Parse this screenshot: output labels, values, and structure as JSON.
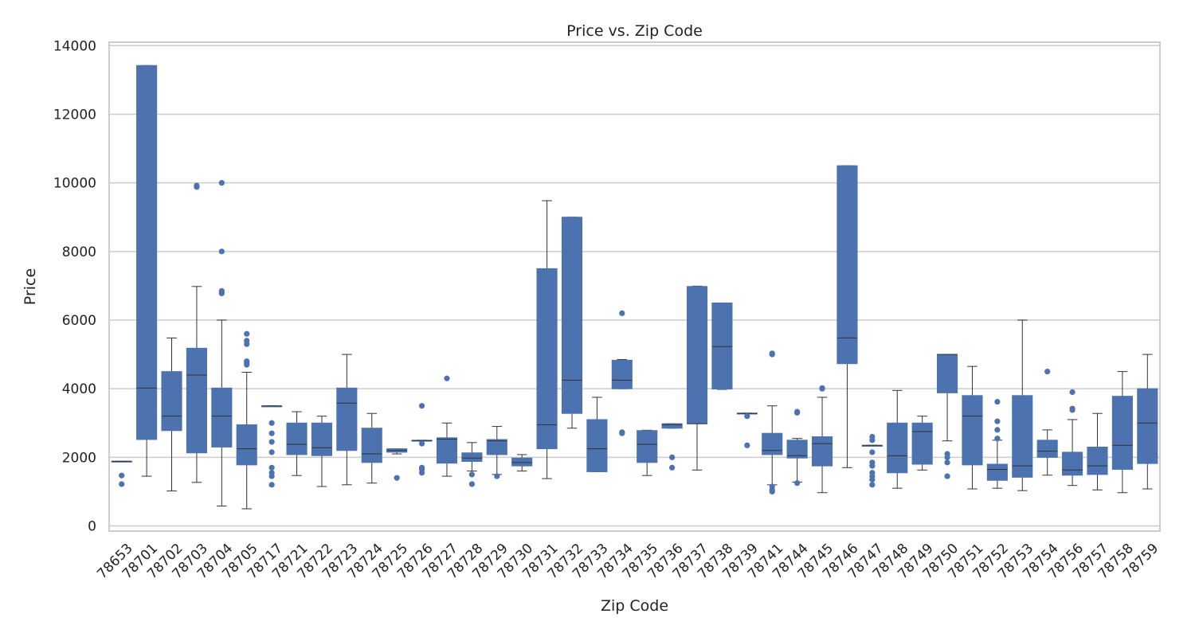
{
  "chart_data": {
    "type": "box",
    "title": "Price vs. Zip Code",
    "xlabel": "Zip Code",
    "ylabel": "Price",
    "ylim": [
      -150,
      14100
    ],
    "yticks": [
      0,
      2000,
      4000,
      6000,
      8000,
      10000,
      12000,
      14000
    ],
    "grid": "horizontal",
    "box_color": "#4c72b0",
    "line_color": "#333333",
    "grid_color": "#cccccc",
    "frame_color": "#cccccc",
    "categories": [
      "78653",
      "78701",
      "78702",
      "78703",
      "78704",
      "78705",
      "78717",
      "78721",
      "78722",
      "78723",
      "78724",
      "78725",
      "78726",
      "78727",
      "78728",
      "78729",
      "78730",
      "78731",
      "78732",
      "78733",
      "78734",
      "78735",
      "78736",
      "78737",
      "78738",
      "78739",
      "78741",
      "78744",
      "78745",
      "78746",
      "78747",
      "78748",
      "78749",
      "78750",
      "78751",
      "78752",
      "78753",
      "78754",
      "78756",
      "78757",
      "78758",
      "78759"
    ],
    "boxes": [
      {
        "low": 1880,
        "q1": 1880,
        "median": 1880,
        "q3": 1890,
        "high": 1890,
        "outliers": [
          1470,
          1220
        ]
      },
      {
        "low": 1450,
        "q1": 2520,
        "median": 4020,
        "q3": 13420,
        "high": 13420,
        "outliers": []
      },
      {
        "low": 1020,
        "q1": 2780,
        "median": 3200,
        "q3": 4500,
        "high": 5480,
        "outliers": []
      },
      {
        "low": 1270,
        "q1": 2130,
        "median": 4400,
        "q3": 5180,
        "high": 6980,
        "outliers": [
          9880,
          9920
        ]
      },
      {
        "low": 580,
        "q1": 2300,
        "median": 3200,
        "q3": 4020,
        "high": 6000,
        "outliers": [
          10000,
          8000,
          6850,
          6800,
          6780
        ]
      },
      {
        "low": 500,
        "q1": 1780,
        "median": 2250,
        "q3": 2950,
        "high": 4480,
        "outliers": [
          5600,
          5400,
          5300,
          4800,
          4750,
          4700
        ]
      },
      {
        "low": 3500,
        "q1": 3500,
        "median": 3500,
        "q3": 3500,
        "high": 3500,
        "outliers": [
          3000,
          2700,
          2450,
          2150,
          1700,
          1550,
          1450,
          1200
        ]
      },
      {
        "low": 1470,
        "q1": 2080,
        "median": 2380,
        "q3": 3000,
        "high": 3330,
        "outliers": []
      },
      {
        "low": 1150,
        "q1": 2050,
        "median": 2280,
        "q3": 3000,
        "high": 3200,
        "outliers": []
      },
      {
        "low": 1200,
        "q1": 2200,
        "median": 3580,
        "q3": 4020,
        "high": 5000,
        "outliers": []
      },
      {
        "low": 1250,
        "q1": 1850,
        "median": 2100,
        "q3": 2850,
        "high": 3280,
        "outliers": []
      },
      {
        "low": 2100,
        "q1": 2150,
        "median": 2200,
        "q3": 2250,
        "high": 2250,
        "outliers": [
          1400
        ]
      },
      {
        "low": 2480,
        "q1": 2480,
        "median": 2480,
        "q3": 2500,
        "high": 2500,
        "outliers": [
          3500,
          2400,
          1700,
          1650,
          1550
        ]
      },
      {
        "low": 1450,
        "q1": 1830,
        "median": 2530,
        "q3": 2570,
        "high": 3000,
        "outliers": [
          4300
        ]
      },
      {
        "low": 1600,
        "q1": 1880,
        "median": 1980,
        "q3": 2130,
        "high": 2430,
        "outliers": [
          1500,
          1220
        ]
      },
      {
        "low": 1500,
        "q1": 2080,
        "median": 2480,
        "q3": 2520,
        "high": 2900,
        "outliers": [
          1450
        ]
      },
      {
        "low": 1600,
        "q1": 1750,
        "median": 1850,
        "q3": 1980,
        "high": 2080,
        "outliers": []
      },
      {
        "low": 1380,
        "q1": 2250,
        "median": 2950,
        "q3": 7500,
        "high": 9480,
        "outliers": []
      },
      {
        "low": 2850,
        "q1": 3280,
        "median": 4250,
        "q3": 9000,
        "high": 9000,
        "outliers": []
      },
      {
        "low": 1580,
        "q1": 1580,
        "median": 2250,
        "q3": 3100,
        "high": 3750,
        "outliers": []
      },
      {
        "low": 4000,
        "q1": 4000,
        "median": 4250,
        "q3": 4830,
        "high": 4850,
        "outliers": [
          6200,
          2730,
          2700
        ]
      },
      {
        "low": 1470,
        "q1": 1850,
        "median": 2380,
        "q3": 2780,
        "high": 2790,
        "outliers": []
      },
      {
        "low": 2850,
        "q1": 2850,
        "median": 2950,
        "q3": 2980,
        "high": 2980,
        "outliers": [
          2000,
          1700
        ]
      },
      {
        "low": 1630,
        "q1": 2980,
        "median": 2980,
        "q3": 6980,
        "high": 6990,
        "outliers": []
      },
      {
        "low": 3980,
        "q1": 3990,
        "median": 5230,
        "q3": 6500,
        "high": 6500,
        "outliers": []
      },
      {
        "low": 3280,
        "q1": 3280,
        "median": 3280,
        "q3": 3290,
        "high": 3290,
        "outliers": [
          3200,
          2350
        ]
      },
      {
        "low": 1200,
        "q1": 2080,
        "median": 2200,
        "q3": 2700,
        "high": 3500,
        "outliers": [
          5030,
          5000,
          1150,
          1050,
          1000
        ]
      },
      {
        "low": 1280,
        "q1": 1980,
        "median": 2050,
        "q3": 2500,
        "high": 2550,
        "outliers": [
          3330,
          3300,
          1250
        ]
      },
      {
        "low": 970,
        "q1": 1750,
        "median": 2400,
        "q3": 2600,
        "high": 3750,
        "outliers": [
          4020,
          4000
        ]
      },
      {
        "low": 1700,
        "q1": 4730,
        "median": 5480,
        "q3": 10500,
        "high": 10500,
        "outliers": []
      },
      {
        "low": 2350,
        "q1": 2350,
        "median": 2350,
        "q3": 2350,
        "high": 2350,
        "outliers": [
          2600,
          2500,
          2150,
          1850,
          1750,
          1550,
          1450,
          1350,
          1200
        ]
      },
      {
        "low": 1100,
        "q1": 1550,
        "median": 2050,
        "q3": 3000,
        "high": 3950,
        "outliers": []
      },
      {
        "low": 1630,
        "q1": 1800,
        "median": 2750,
        "q3": 3000,
        "high": 3200,
        "outliers": []
      },
      {
        "low": 2480,
        "q1": 3880,
        "median": 5000,
        "q3": 5000,
        "high": 5000,
        "outliers": [
          2100,
          2000,
          1850,
          1450
        ]
      },
      {
        "low": 1080,
        "q1": 1780,
        "median": 3200,
        "q3": 3800,
        "high": 4650,
        "outliers": []
      },
      {
        "low": 1100,
        "q1": 1330,
        "median": 1650,
        "q3": 1800,
        "high": 2500,
        "outliers": [
          3620,
          3050,
          2800,
          2550
        ]
      },
      {
        "low": 1030,
        "q1": 1420,
        "median": 1750,
        "q3": 3800,
        "high": 6000,
        "outliers": []
      },
      {
        "low": 1480,
        "q1": 2000,
        "median": 2180,
        "q3": 2500,
        "high": 2800,
        "outliers": [
          4500
        ]
      },
      {
        "low": 1180,
        "q1": 1480,
        "median": 1630,
        "q3": 2150,
        "high": 3100,
        "outliers": [
          3900,
          3420,
          3380
        ]
      },
      {
        "low": 1050,
        "q1": 1500,
        "median": 1750,
        "q3": 2300,
        "high": 3280,
        "outliers": []
      },
      {
        "low": 970,
        "q1": 1650,
        "median": 2350,
        "q3": 3780,
        "high": 4500,
        "outliers": []
      },
      {
        "low": 1080,
        "q1": 1820,
        "median": 3000,
        "q3": 4000,
        "high": 5000,
        "outliers": []
      }
    ]
  }
}
